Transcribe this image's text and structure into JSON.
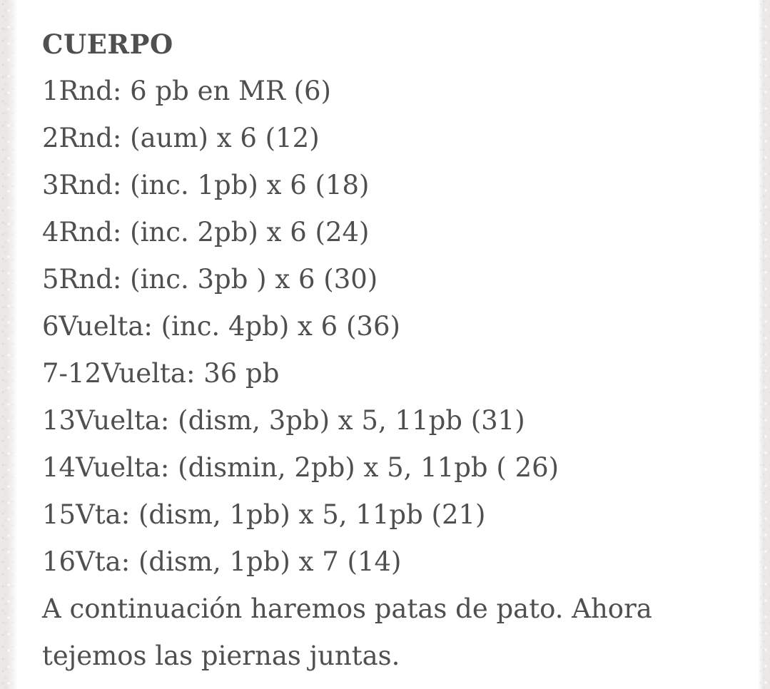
{
  "colors": {
    "text": "#4f4f4f",
    "background": "#ffffff",
    "page_edge": "#eae9e7"
  },
  "document": {
    "heading": "CUERPO",
    "lines": [
      "1Rnd: 6 pb en MR (6)",
      "2Rnd: (aum) x 6 (12)",
      "3Rnd: (inc. 1pb) x 6 (18)",
      "4Rnd: (inc. 2pb) x 6 (24)",
      "5Rnd: (inc. 3pb ) x 6 (30)",
      "6Vuelta: (inc. 4pb) x 6 (36)",
      "7-12Vuelta: 36 pb",
      "13Vuelta: (dism, 3pb) x 5, 11pb (31)",
      "14Vuelta: (dismin, 2pb) x 5, 11pb ( 26)",
      "15Vta: (dism, 1pb) x 5, 11pb (21)",
      "16Vta: (dism, 1pb) x 7 (14)"
    ],
    "note": "A continuación haremos patas de pato. Ahora tejemos las piernas juntas."
  }
}
